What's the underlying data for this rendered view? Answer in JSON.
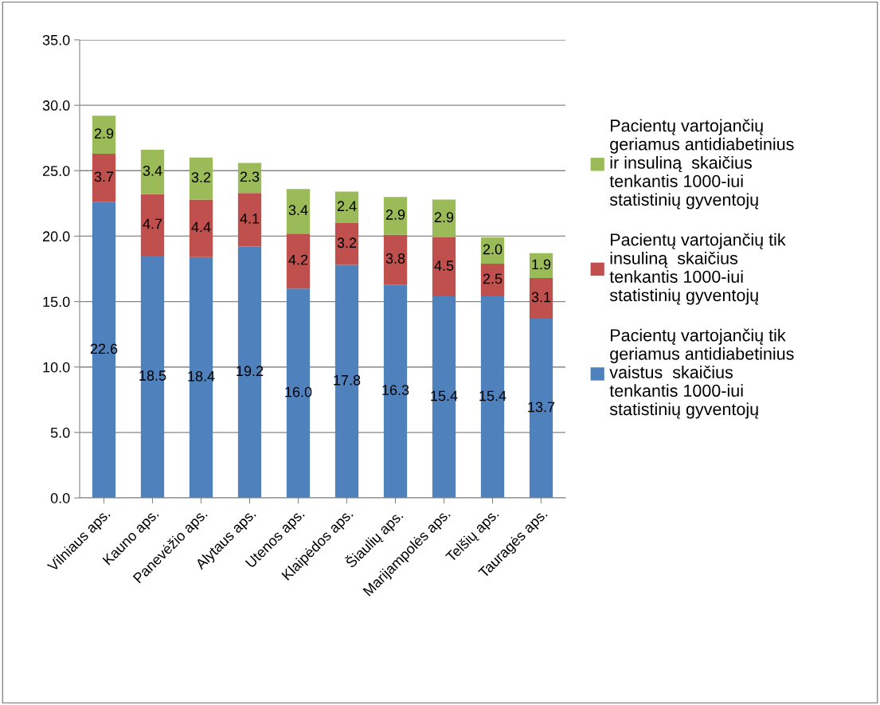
{
  "chart_data": {
    "type": "bar",
    "stacked": true,
    "categories": [
      "Vilniaus aps.",
      "Kauno aps.",
      "Panevėžio aps.",
      "Alytaus aps.",
      "Utenos aps.",
      "Klaipėdos aps.",
      "Šiaulių aps.",
      "Marijampolės aps.",
      "Telšių aps.",
      "Tauragės aps."
    ],
    "series": [
      {
        "name": "Pacientų vartojančių tik\ngeriamus antidiabetinius\nvaistus  skaičius\ntenkantis 1000-iui\nstatistinių gyventojų",
        "color": "#4f81bd",
        "values": [
          22.6,
          18.5,
          18.4,
          19.2,
          16.0,
          17.8,
          16.3,
          15.4,
          15.4,
          13.7
        ],
        "value_labels": [
          "22.6",
          "18.5",
          "18.4",
          "19.2",
          "16.0",
          "17.8",
          "16.3",
          "15.4",
          "15.4",
          "13.7"
        ]
      },
      {
        "name": "Pacientų vartojančių tik\ninsuliną  skaičius\ntenkantis 1000-iui\nstatistinių gyventojų",
        "color": "#c0504d",
        "values": [
          3.7,
          4.7,
          4.4,
          4.1,
          4.2,
          3.2,
          3.8,
          4.5,
          2.5,
          3.1
        ],
        "value_labels": [
          "3.7",
          "4.7",
          "4.4",
          "4.1",
          "4.2",
          "3.2",
          "3.8",
          "4.5",
          "2.5",
          "3.1"
        ]
      },
      {
        "name": "Pacientų vartojančių\ngeriamus antidiabetinius\nir insuliną  skaičius\ntenkantis 1000-iui\nstatistinių gyventojų",
        "color": "#9bbb59",
        "values": [
          2.9,
          3.4,
          3.2,
          2.3,
          3.4,
          2.4,
          2.9,
          2.9,
          2.0,
          1.9
        ],
        "value_labels": [
          "2.9",
          "3.4",
          "3.2",
          "2.3",
          "3.4",
          "2.4",
          "2.9",
          "2.9",
          "2.0",
          "1.9"
        ]
      }
    ],
    "ylim": [
      0,
      35
    ],
    "yticks": [
      {
        "value": 0,
        "label": "0.0"
      },
      {
        "value": 5,
        "label": "5.0"
      },
      {
        "value": 10,
        "label": "10.0"
      },
      {
        "value": 15,
        "label": "15.0"
      },
      {
        "value": 20,
        "label": "20.0"
      },
      {
        "value": 25,
        "label": "25.0"
      },
      {
        "value": 30,
        "label": "30.0"
      },
      {
        "value": 35,
        "label": "35.0"
      }
    ],
    "grid": "y",
    "legend": "right"
  }
}
